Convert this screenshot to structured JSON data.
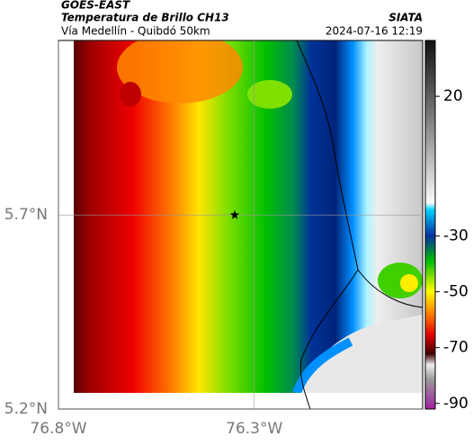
{
  "header": {
    "source": "GOES-EAST",
    "title": "Temperatura de Brillo CH13",
    "subtitle": "Vía Medellín - Quibdó 50km",
    "org": "SIATA",
    "timestamp": "2024-07-16 12:19"
  },
  "map": {
    "xlim": [
      -76.8,
      -75.87
    ],
    "ylim": [
      5.2,
      6.15
    ],
    "xticks": [
      {
        "value": -76.8,
        "label": "76.8°W"
      },
      {
        "value": -76.3,
        "label": "76.3°W"
      }
    ],
    "yticks": [
      {
        "value": 5.2,
        "label": "5.2°N"
      },
      {
        "value": 5.7,
        "label": "5.7°N"
      }
    ],
    "grid": true,
    "marker": {
      "lon": -76.35,
      "lat": 5.7
    }
  },
  "colorbar": {
    "clim": [
      -92,
      40
    ],
    "ticks": [
      20,
      -30,
      -50,
      -70,
      -90
    ]
  }
}
